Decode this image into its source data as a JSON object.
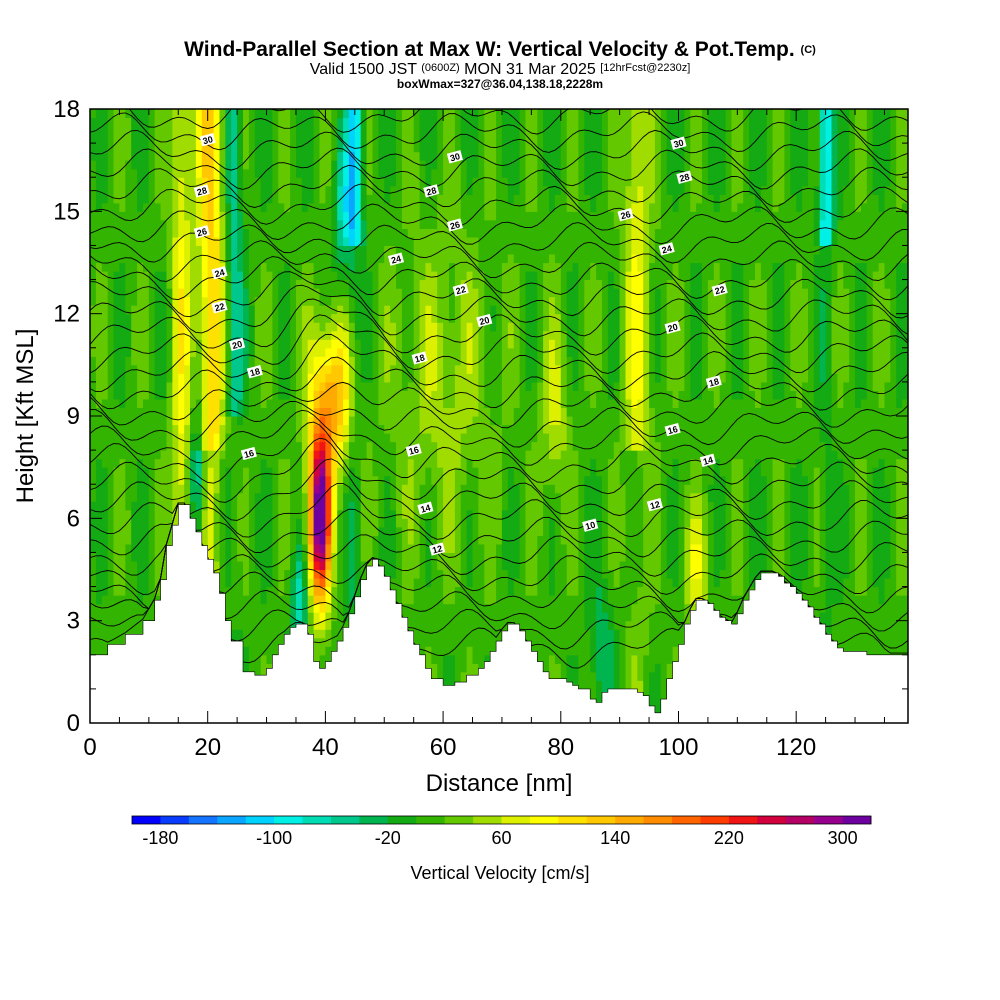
{
  "header": {
    "title": "Wind-Parallel Section at Max W: Vertical Velocity & Pot.Temp.",
    "copyright": "(C)",
    "valid_prefix": "Valid 1500 JST",
    "valid_utc": "(0600Z)",
    "valid_date": "MON 31 Mar 2025",
    "forecast": "[12hrFcst@2230z]",
    "box_info": "boxWmax=327@36.04,138.18,2228m"
  },
  "colors": {
    "w_scale": [
      "#0000ff",
      "#0a3cff",
      "#1473ff",
      "#0aa5ff",
      "#00d2ff",
      "#00f0e6",
      "#00dcb4",
      "#00c88c",
      "#00b450",
      "#14aa14",
      "#32b400",
      "#64c800",
      "#a0dc00",
      "#dcf000",
      "#ffff00",
      "#ffe100",
      "#ffc800",
      "#ffaa00",
      "#ff8c00",
      "#ff6400",
      "#ff3c00",
      "#f01414",
      "#d2003c",
      "#b40064",
      "#96008c",
      "#6e00a0"
    ],
    "terrain": "#ffffff",
    "contour": "#000000"
  },
  "chart_data": {
    "type": "heatmap",
    "xlabel": "Distance [nm]",
    "ylabel": "Height [Kft MSL]",
    "xlim": [
      0,
      139
    ],
    "ylim": [
      0,
      18
    ],
    "xticks": [
      0,
      20,
      40,
      60,
      80,
      100,
      120
    ],
    "yticks": [
      0,
      3,
      6,
      9,
      12,
      15,
      18
    ],
    "colorbar": {
      "label": "Vertical Velocity [cm/s]",
      "range": [
        -200,
        320
      ],
      "step": 20,
      "tick_labels": [
        -180,
        -100,
        -20,
        60,
        140,
        220,
        300
      ]
    },
    "updraft_max": {
      "value": 327,
      "unit": "cm/s",
      "x_nm": 39,
      "z_kft": 6.0
    },
    "terrain_profile": {
      "x": [
        0,
        3,
        6,
        9,
        11,
        12,
        13,
        14,
        15,
        16,
        17,
        18,
        19,
        20,
        21,
        22,
        23,
        24,
        26,
        28,
        29,
        30,
        31,
        32,
        33,
        34,
        35,
        36,
        37,
        38,
        39,
        40,
        41,
        42,
        43,
        44,
        45,
        46,
        47,
        48,
        49,
        50,
        51,
        52,
        53,
        54,
        55,
        56,
        57,
        58,
        60,
        62,
        64,
        66,
        67,
        68,
        69,
        70,
        71,
        72,
        73,
        74,
        75,
        76,
        77,
        78,
        79,
        80,
        81,
        82,
        83,
        84,
        85,
        86,
        87,
        88,
        89,
        90,
        91,
        92,
        93,
        94,
        95,
        96,
        97,
        98,
        99,
        100,
        101,
        102,
        103,
        104,
        105,
        106,
        107,
        108,
        109,
        110,
        111,
        112,
        113,
        114,
        115,
        116,
        117,
        118,
        119,
        120,
        121,
        122,
        123,
        124,
        125,
        126,
        127,
        128,
        129,
        130,
        132,
        134,
        136,
        139
      ],
      "z": [
        2.0,
        2.3,
        2.6,
        3.0,
        3.6,
        4.2,
        5.2,
        5.8,
        6.4,
        6.4,
        6.0,
        5.6,
        5.2,
        4.8,
        4.4,
        3.8,
        3.0,
        2.4,
        1.5,
        1.4,
        1.4,
        1.6,
        2.0,
        2.3,
        2.6,
        2.8,
        2.9,
        2.9,
        2.6,
        1.8,
        1.6,
        1.8,
        2.1,
        2.4,
        2.8,
        3.2,
        3.7,
        4.2,
        4.6,
        4.8,
        4.6,
        4.3,
        3.9,
        3.5,
        3.1,
        2.7,
        2.3,
        2.0,
        1.6,
        1.3,
        1.1,
        1.2,
        1.4,
        1.6,
        1.8,
        2.1,
        2.4,
        2.7,
        2.9,
        2.9,
        2.7,
        2.4,
        2.1,
        1.8,
        1.5,
        1.3,
        1.3,
        1.3,
        1.2,
        1.1,
        1.0,
        1.0,
        0.7,
        0.6,
        0.9,
        1.0,
        1.0,
        1.0,
        1.0,
        1.0,
        0.9,
        0.8,
        0.5,
        0.3,
        0.7,
        1.3,
        1.8,
        2.3,
        2.9,
        3.3,
        3.6,
        3.6,
        3.5,
        3.3,
        3.1,
        3.0,
        2.9,
        3.2,
        3.6,
        3.9,
        4.2,
        4.4,
        4.4,
        4.4,
        4.3,
        4.1,
        4.0,
        3.8,
        3.6,
        3.4,
        3.1,
        2.9,
        2.6,
        2.4,
        2.2,
        2.1,
        2.1,
        2.1,
        2.0,
        2.0,
        2.0,
        2.0
      ]
    },
    "theta_contours": {
      "levels": [
        10,
        12,
        14,
        16,
        18,
        20,
        22,
        24,
        26,
        28,
        30
      ],
      "labels": [
        {
          "text": "30",
          "x": 20,
          "z": 17.1
        },
        {
          "text": "28",
          "x": 19,
          "z": 15.6
        },
        {
          "text": "26",
          "x": 19,
          "z": 14.4
        },
        {
          "text": "24",
          "x": 22,
          "z": 13.2
        },
        {
          "text": "22",
          "x": 22,
          "z": 12.2
        },
        {
          "text": "20",
          "x": 25,
          "z": 11.1
        },
        {
          "text": "18",
          "x": 28,
          "z": 10.3
        },
        {
          "text": "16",
          "x": 27,
          "z": 7.9
        },
        {
          "text": "30",
          "x": 62,
          "z": 16.6
        },
        {
          "text": "28",
          "x": 58,
          "z": 15.6
        },
        {
          "text": "26",
          "x": 62,
          "z": 14.6
        },
        {
          "text": "24",
          "x": 52,
          "z": 13.6
        },
        {
          "text": "22",
          "x": 63,
          "z": 12.7
        },
        {
          "text": "20",
          "x": 67,
          "z": 11.8
        },
        {
          "text": "18",
          "x": 56,
          "z": 10.7
        },
        {
          "text": "16",
          "x": 55,
          "z": 8.0
        },
        {
          "text": "14",
          "x": 57,
          "z": 6.3
        },
        {
          "text": "12",
          "x": 59,
          "z": 5.1
        },
        {
          "text": "10",
          "x": 85,
          "z": 5.8
        },
        {
          "text": "30",
          "x": 100,
          "z": 17.0
        },
        {
          "text": "28",
          "x": 101,
          "z": 16.0
        },
        {
          "text": "26",
          "x": 91,
          "z": 14.9
        },
        {
          "text": "24",
          "x": 98,
          "z": 13.9
        },
        {
          "text": "22",
          "x": 107,
          "z": 12.7
        },
        {
          "text": "20",
          "x": 99,
          "z": 11.6
        },
        {
          "text": "18",
          "x": 106,
          "z": 10.0
        },
        {
          "text": "16",
          "x": 99,
          "z": 8.6
        },
        {
          "text": "14",
          "x": 105,
          "z": 7.7
        },
        {
          "text": "12",
          "x": 96,
          "z": 6.4
        }
      ]
    }
  }
}
